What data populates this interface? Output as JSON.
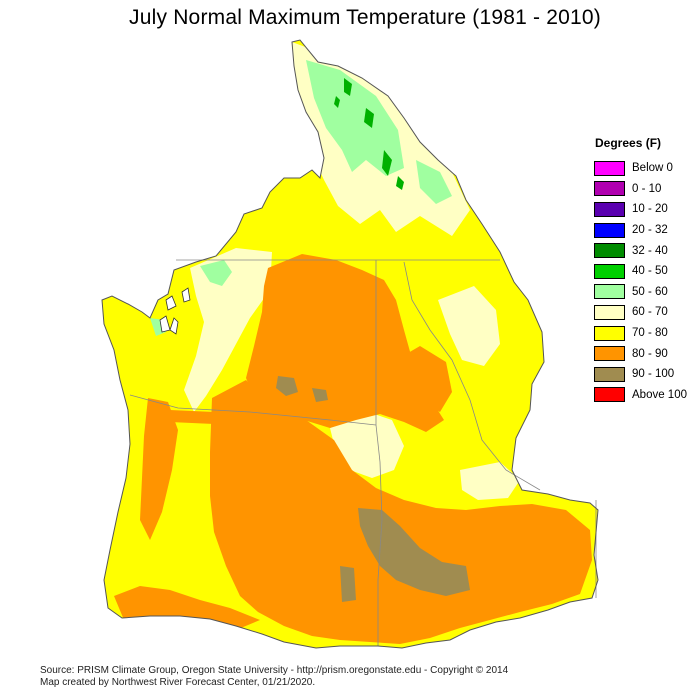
{
  "title": "July Normal Maximum Temperature (1981 - 2010)",
  "legend": {
    "title": "Degrees (F)",
    "items": [
      {
        "label": "Below 0",
        "color": "#ff00ff"
      },
      {
        "label": "0 - 10",
        "color": "#b000b0"
      },
      {
        "label": "10 - 20",
        "color": "#5a00b0"
      },
      {
        "label": "20 - 32",
        "color": "#0000ff"
      },
      {
        "label": "32 - 40",
        "color": "#008c00"
      },
      {
        "label": "40 - 50",
        "color": "#00d000"
      },
      {
        "label": "50 - 60",
        "color": "#a0ffa0"
      },
      {
        "label": "60 - 70",
        "color": "#ffffc4"
      },
      {
        "label": "70 - 80",
        "color": "#ffff00"
      },
      {
        "label": "80 - 90",
        "color": "#ff9400"
      },
      {
        "label": "90 - 100",
        "color": "#a08c50"
      },
      {
        "label": "Above 100",
        "color": "#ff0000"
      }
    ]
  },
  "footer": {
    "source": "Source: PRISM Climate Group, Oregon State University - http://prism.oregonstate.edu - Copyright © 2014",
    "credit": "Map created by Northwest River Forecast Center, 01/21/2020."
  }
}
